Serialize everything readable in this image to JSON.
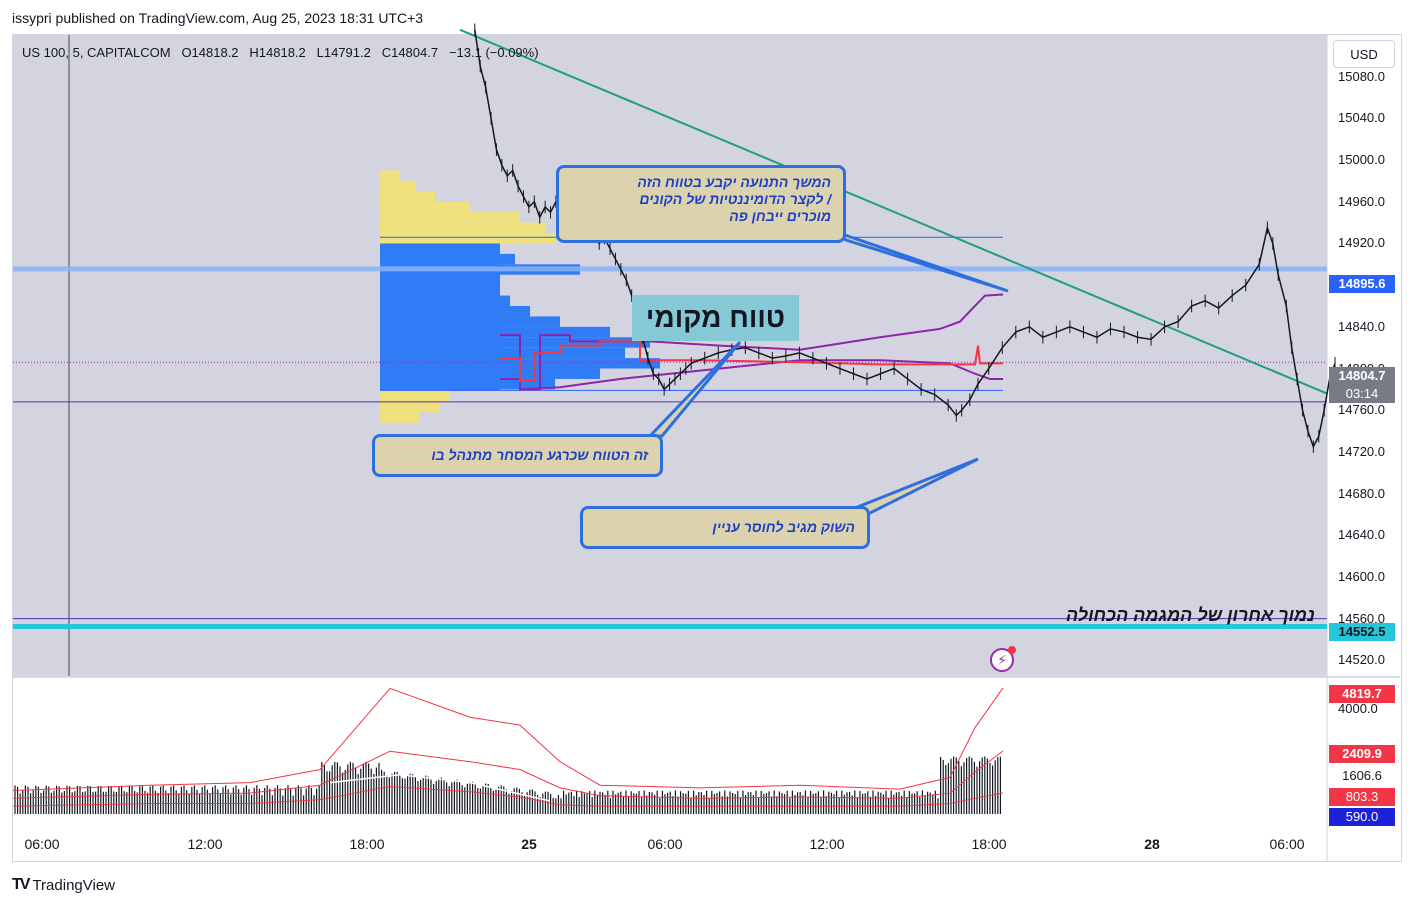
{
  "header": {
    "publisher": "issypri published on TradingView.com, Aug 25, 2023 18:31 UTC+3"
  },
  "symbol": {
    "name": "US 100, 5, CAPITALCOM",
    "o": "O14818.2",
    "h": "H14818.2",
    "l": "L14791.2",
    "c": "C14804.7",
    "change": "−13.1 (−0.09%)"
  },
  "currency_button": "USD",
  "annotations": {
    "top_callout": [
      "המשך התנועה יקבע בטווח הזה",
      "/ לקצר הדומיננטיות של הקונים",
      "מוכרים ייבחן פה"
    ],
    "local_range": "טווח מקומי",
    "range_callout": "זה הטווח שכרגע המסחר מתנהל בו",
    "market_callout": "השוק מגיב לחוסר עניין",
    "support_label": "נמוך אחרון של המגמה הכחולה"
  },
  "price_tags": {
    "level_blue": "14895.6",
    "last_price": "14804.7",
    "countdown": "03:14",
    "level_cyan": "14552.5"
  },
  "volume_tags": {
    "upper_band": "4819.7",
    "mid_band": "2409.9",
    "volume": "1606.6",
    "lower_band": "803.3",
    "ma": "590.0"
  },
  "footer": {
    "brand": "TradingView"
  },
  "colors": {
    "blue_profile": "#2f7cf6",
    "yellow_profile": "#efe27d",
    "trend": "#1f9e7e",
    "purple": "#8e24aa",
    "red": "#f23645",
    "cyan": "#26c6da"
  },
  "chart_data": {
    "type": "line",
    "price_axis": {
      "ticks": [
        15080,
        15040,
        15000,
        14960,
        14920,
        14880,
        14840,
        14800,
        14760,
        14720,
        14680,
        14640,
        14600,
        14560,
        14520
      ],
      "ylim": [
        14505,
        15120
      ]
    },
    "volume_axis": {
      "ticks": [
        4000
      ],
      "ylim": [
        0,
        5200
      ]
    },
    "time_axis": {
      "labels": [
        "06:00",
        "12:00",
        "18:00",
        "25",
        "06:00",
        "12:00",
        "18:00",
        "28",
        "06:00"
      ]
    },
    "series": [
      {
        "values": [
          [
            16.0,
            15125
          ],
          [
            16.2,
            15090
          ],
          [
            16.4,
            15070
          ],
          [
            16.6,
            15040
          ],
          [
            16.8,
            15010
          ],
          [
            17.0,
            14995
          ],
          [
            17.2,
            14985
          ],
          [
            17.4,
            14990
          ],
          [
            17.6,
            14975
          ],
          [
            17.8,
            14965
          ],
          [
            18.0,
            14955
          ],
          [
            18.2,
            14960
          ],
          [
            18.4,
            14945
          ],
          [
            18.6,
            14955
          ],
          [
            18.8,
            14950
          ],
          [
            19.0,
            14960
          ],
          [
            19.2,
            14945
          ],
          [
            19.4,
            14950
          ],
          [
            19.6,
            14940
          ],
          [
            19.8,
            14945
          ],
          [
            20.0,
            14935
          ],
          [
            20.2,
            14940
          ],
          [
            20.4,
            14930
          ],
          [
            20.6,
            14920
          ],
          [
            20.8,
            14925
          ],
          [
            21.0,
            14915
          ],
          [
            21.2,
            14905
          ],
          [
            21.4,
            14895
          ],
          [
            21.6,
            14885
          ],
          [
            21.8,
            14870
          ],
          [
            22.0,
            14850
          ],
          [
            22.2,
            14830
          ],
          [
            22.4,
            14810
          ],
          [
            22.6,
            14795
          ],
          [
            22.8,
            14790
          ],
          [
            23.0,
            14780
          ],
          [
            23.2,
            14785
          ],
          [
            23.4,
            14790
          ],
          [
            23.6,
            14795
          ],
          [
            23.8,
            14800
          ],
          [
            24.0,
            14805
          ],
          [
            24.5,
            14810
          ],
          [
            25.0,
            14815
          ],
          [
            25.5,
            14818
          ],
          [
            26.0,
            14820
          ],
          [
            26.5,
            14815
          ],
          [
            27.0,
            14810
          ],
          [
            27.5,
            14812
          ],
          [
            28.0,
            14815
          ],
          [
            28.5,
            14810
          ],
          [
            29.0,
            14805
          ],
          [
            29.5,
            14800
          ],
          [
            30.0,
            14795
          ],
          [
            30.5,
            14790
          ],
          [
            31.0,
            14795
          ],
          [
            31.5,
            14800
          ],
          [
            32.0,
            14790
          ],
          [
            32.5,
            14780
          ],
          [
            33.0,
            14775
          ],
          [
            33.5,
            14765
          ],
          [
            33.8,
            14755
          ],
          [
            34.0,
            14760
          ],
          [
            34.3,
            14770
          ],
          [
            34.6,
            14785
          ],
          [
            35.0,
            14800
          ],
          [
            35.5,
            14820
          ],
          [
            36.0,
            14835
          ],
          [
            36.5,
            14840
          ],
          [
            37.0,
            14830
          ],
          [
            37.5,
            14835
          ],
          [
            38.0,
            14840
          ],
          [
            38.5,
            14835
          ],
          [
            39.0,
            14830
          ],
          [
            39.5,
            14838
          ],
          [
            40.0,
            14835
          ],
          [
            40.5,
            14830
          ],
          [
            41.0,
            14828
          ],
          [
            41.5,
            14840
          ],
          [
            42.0,
            14845
          ],
          [
            42.5,
            14860
          ],
          [
            43.0,
            14865
          ],
          [
            43.5,
            14858
          ],
          [
            44.0,
            14870
          ],
          [
            44.5,
            14880
          ],
          [
            45.0,
            14900
          ],
          [
            45.3,
            14935
          ],
          [
            45.5,
            14920
          ],
          [
            45.7,
            14890
          ],
          [
            46.0,
            14860
          ],
          [
            46.2,
            14820
          ],
          [
            46.4,
            14790
          ],
          [
            46.6,
            14760
          ],
          [
            46.8,
            14740
          ],
          [
            47.0,
            14725
          ],
          [
            47.2,
            14735
          ],
          [
            47.4,
            14760
          ],
          [
            47.6,
            14790
          ],
          [
            47.8,
            14805
          ]
        ]
      }
    ],
    "levels": [
      14895.6,
      14552.5,
      14768,
      14810
    ]
  }
}
